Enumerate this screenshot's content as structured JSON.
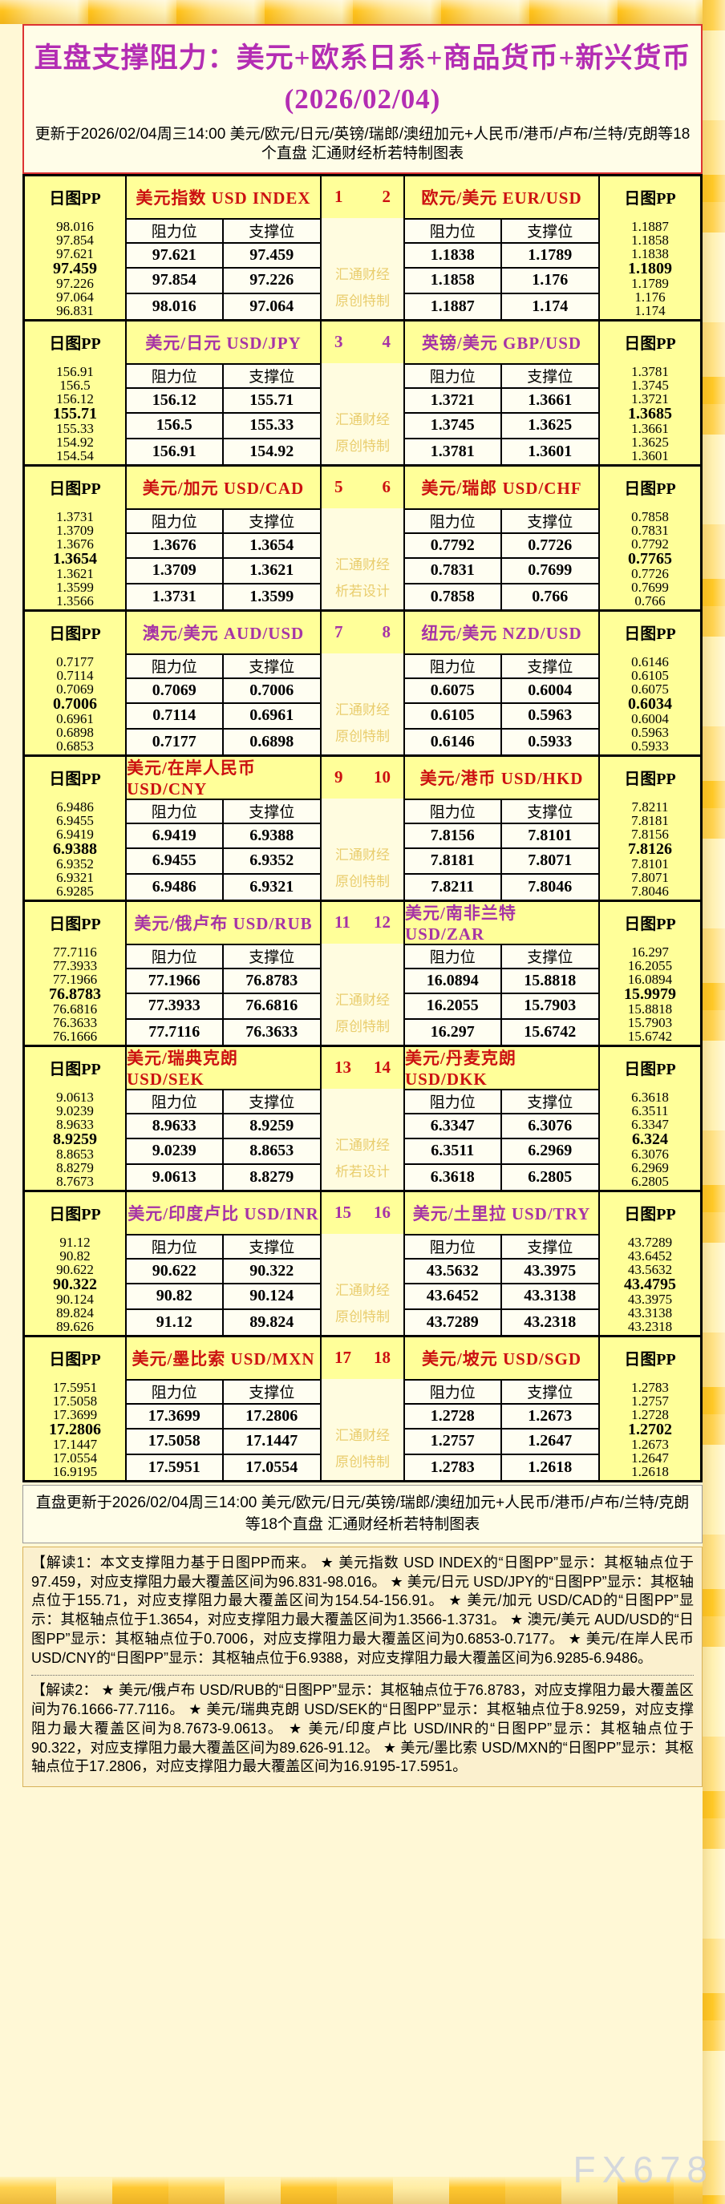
{
  "header": {
    "title": "直盘支撑阻力：美元+欧系日系+商品货币+新兴货币(2026/02/04)",
    "subtitle": "更新于2026/02/04周三14:00 美元/欧元/日元/英镑/瑞郎/澳纽加元+人民币/港币/卢布/兰特/克朗等18个直盘 汇通财经析若特制图表"
  },
  "labels": {
    "pp": "日图PP",
    "resistance": "阻力位",
    "support": "支撑位"
  },
  "colors": {
    "red_title": "#cc1111",
    "purple_title": "#a633a6",
    "main_title": "#b32db3",
    "band_yellow": "#FFFF99",
    "cell_ivory": "#FFFEF2",
    "watermark_gold": "#e9cd6d"
  },
  "sections": [
    {
      "color": "red",
      "num_left": "1",
      "num_right": "2",
      "watermark": [
        "汇通财经",
        "原创特制"
      ],
      "left": {
        "title": "美元指数 USD INDEX",
        "pp": [
          "98.016",
          "97.854",
          "97.621",
          "97.459",
          "97.226",
          "97.064",
          "96.831"
        ],
        "rows": [
          [
            "97.621",
            "97.459"
          ],
          [
            "97.854",
            "97.226"
          ],
          [
            "98.016",
            "97.064"
          ]
        ]
      },
      "right": {
        "title": "欧元/美元 EUR/USD",
        "pp": [
          "1.1887",
          "1.1858",
          "1.1838",
          "1.1809",
          "1.1789",
          "1.176",
          "1.174"
        ],
        "rows": [
          [
            "1.1838",
            "1.1789"
          ],
          [
            "1.1858",
            "1.176"
          ],
          [
            "1.1887",
            "1.174"
          ]
        ]
      }
    },
    {
      "color": "purple",
      "num_left": "3",
      "num_right": "4",
      "watermark": [
        "汇通财经",
        "原创特制"
      ],
      "left": {
        "title": "美元/日元 USD/JPY",
        "pp": [
          "156.91",
          "156.5",
          "156.12",
          "155.71",
          "155.33",
          "154.92",
          "154.54"
        ],
        "rows": [
          [
            "156.12",
            "155.71"
          ],
          [
            "156.5",
            "155.33"
          ],
          [
            "156.91",
            "154.92"
          ]
        ]
      },
      "right": {
        "title": "英镑/美元 GBP/USD",
        "pp": [
          "1.3781",
          "1.3745",
          "1.3721",
          "1.3685",
          "1.3661",
          "1.3625",
          "1.3601"
        ],
        "rows": [
          [
            "1.3721",
            "1.3661"
          ],
          [
            "1.3745",
            "1.3625"
          ],
          [
            "1.3781",
            "1.3601"
          ]
        ]
      }
    },
    {
      "color": "red",
      "num_left": "5",
      "num_right": "6",
      "watermark": [
        "汇通财经",
        "析若设计"
      ],
      "left": {
        "title": "美元/加元 USD/CAD",
        "pp": [
          "1.3731",
          "1.3709",
          "1.3676",
          "1.3654",
          "1.3621",
          "1.3599",
          "1.3566"
        ],
        "rows": [
          [
            "1.3676",
            "1.3654"
          ],
          [
            "1.3709",
            "1.3621"
          ],
          [
            "1.3731",
            "1.3599"
          ]
        ]
      },
      "right": {
        "title": "美元/瑞郎 USD/CHF",
        "pp": [
          "0.7858",
          "0.7831",
          "0.7792",
          "0.7765",
          "0.7726",
          "0.7699",
          "0.766"
        ],
        "rows": [
          [
            "0.7792",
            "0.7726"
          ],
          [
            "0.7831",
            "0.7699"
          ],
          [
            "0.7858",
            "0.766"
          ]
        ]
      }
    },
    {
      "color": "purple",
      "num_left": "7",
      "num_right": "8",
      "watermark": [
        "汇通财经",
        "原创特制"
      ],
      "left": {
        "title": "澳元/美元 AUD/USD",
        "pp": [
          "0.7177",
          "0.7114",
          "0.7069",
          "0.7006",
          "0.6961",
          "0.6898",
          "0.6853"
        ],
        "rows": [
          [
            "0.7069",
            "0.7006"
          ],
          [
            "0.7114",
            "0.6961"
          ],
          [
            "0.7177",
            "0.6898"
          ]
        ]
      },
      "right": {
        "title": "纽元/美元 NZD/USD",
        "pp": [
          "0.6146",
          "0.6105",
          "0.6075",
          "0.6034",
          "0.6004",
          "0.5963",
          "0.5933"
        ],
        "rows": [
          [
            "0.6075",
            "0.6004"
          ],
          [
            "0.6105",
            "0.5963"
          ],
          [
            "0.6146",
            "0.5933"
          ]
        ]
      }
    },
    {
      "color": "red",
      "num_left": "9",
      "num_right": "10",
      "watermark": [
        "汇通财经",
        "原创特制"
      ],
      "left": {
        "title": "美元/在岸人民币 USD/CNY",
        "pp": [
          "6.9486",
          "6.9455",
          "6.9419",
          "6.9388",
          "6.9352",
          "6.9321",
          "6.9285"
        ],
        "rows": [
          [
            "6.9419",
            "6.9388"
          ],
          [
            "6.9455",
            "6.9352"
          ],
          [
            "6.9486",
            "6.9321"
          ]
        ]
      },
      "right": {
        "title": "美元/港币 USD/HKD",
        "pp": [
          "7.8211",
          "7.8181",
          "7.8156",
          "7.8126",
          "7.8101",
          "7.8071",
          "7.8046"
        ],
        "rows": [
          [
            "7.8156",
            "7.8101"
          ],
          [
            "7.8181",
            "7.8071"
          ],
          [
            "7.8211",
            "7.8046"
          ]
        ]
      }
    },
    {
      "color": "purple",
      "num_left": "11",
      "num_right": "12",
      "watermark": [
        "汇通财经",
        "原创特制"
      ],
      "left": {
        "title": "美元/俄卢布 USD/RUB",
        "pp": [
          "77.7116",
          "77.3933",
          "77.1966",
          "76.8783",
          "76.6816",
          "76.3633",
          "76.1666"
        ],
        "rows": [
          [
            "77.1966",
            "76.8783"
          ],
          [
            "77.3933",
            "76.6816"
          ],
          [
            "77.7116",
            "76.3633"
          ]
        ]
      },
      "right": {
        "title": "美元/南非兰特 USD/ZAR",
        "pp": [
          "16.297",
          "16.2055",
          "16.0894",
          "15.9979",
          "15.8818",
          "15.7903",
          "15.6742"
        ],
        "rows": [
          [
            "16.0894",
            "15.8818"
          ],
          [
            "16.2055",
            "15.7903"
          ],
          [
            "16.297",
            "15.6742"
          ]
        ]
      }
    },
    {
      "color": "red",
      "num_left": "13",
      "num_right": "14",
      "watermark": [
        "汇通财经",
        "析若设计"
      ],
      "left": {
        "title": "美元/瑞典克朗 USD/SEK",
        "pp": [
          "9.0613",
          "9.0239",
          "8.9633",
          "8.9259",
          "8.8653",
          "8.8279",
          "8.7673"
        ],
        "rows": [
          [
            "8.9633",
            "8.9259"
          ],
          [
            "9.0239",
            "8.8653"
          ],
          [
            "9.0613",
            "8.8279"
          ]
        ]
      },
      "right": {
        "title": "美元/丹麦克朗 USD/DKK",
        "pp": [
          "6.3618",
          "6.3511",
          "6.3347",
          "6.324",
          "6.3076",
          "6.2969",
          "6.2805"
        ],
        "rows": [
          [
            "6.3347",
            "6.3076"
          ],
          [
            "6.3511",
            "6.2969"
          ],
          [
            "6.3618",
            "6.2805"
          ]
        ]
      }
    },
    {
      "color": "purple",
      "num_left": "15",
      "num_right": "16",
      "watermark": [
        "汇通财经",
        "原创特制"
      ],
      "left": {
        "title": "美元/印度卢比 USD/INR",
        "pp": [
          "91.12",
          "90.82",
          "90.622",
          "90.322",
          "90.124",
          "89.824",
          "89.626"
        ],
        "rows": [
          [
            "90.622",
            "90.322"
          ],
          [
            "90.82",
            "90.124"
          ],
          [
            "91.12",
            "89.824"
          ]
        ]
      },
      "right": {
        "title": "美元/土里拉 USD/TRY",
        "pp": [
          "43.7289",
          "43.6452",
          "43.5632",
          "43.4795",
          "43.3975",
          "43.3138",
          "43.2318"
        ],
        "rows": [
          [
            "43.5632",
            "43.3975"
          ],
          [
            "43.6452",
            "43.3138"
          ],
          [
            "43.7289",
            "43.2318"
          ]
        ]
      }
    },
    {
      "color": "red",
      "num_left": "17",
      "num_right": "18",
      "watermark": [
        "汇通财经",
        "原创特制"
      ],
      "left": {
        "title": "美元/墨比索 USD/MXN",
        "pp": [
          "17.5951",
          "17.5058",
          "17.3699",
          "17.2806",
          "17.1447",
          "17.0554",
          "16.9195"
        ],
        "rows": [
          [
            "17.3699",
            "17.2806"
          ],
          [
            "17.5058",
            "17.1447"
          ],
          [
            "17.5951",
            "17.0554"
          ]
        ]
      },
      "right": {
        "title": "美元/坡元 USD/SGD",
        "pp": [
          "1.2783",
          "1.2757",
          "1.2728",
          "1.2702",
          "1.2673",
          "1.2647",
          "1.2618"
        ],
        "rows": [
          [
            "1.2728",
            "1.2673"
          ],
          [
            "1.2757",
            "1.2647"
          ],
          [
            "1.2783",
            "1.2618"
          ]
        ]
      }
    }
  ],
  "footer": {
    "update_line": "直盘更新于2026/02/04周三14:00 美元/欧元/日元/英镑/瑞郎/澳纽加元+人民币/港币/卢布/兰特/克朗等18个直盘 汇通财经析若特制图表",
    "note1": "【解读1：本文支撑阻力基于日图PP而来。 ★ 美元指数 USD INDEX的“日图PP”显示：其枢轴点位于97.459，对应支撑阻力最大覆盖区间为96.831-98.016。 ★ 美元/日元 USD/JPY的“日图PP”显示：其枢轴点位于155.71，对应支撑阻力最大覆盖区间为154.54-156.91。 ★ 美元/加元 USD/CAD的“日图PP”显示：其枢轴点位于1.3654，对应支撑阻力最大覆盖区间为1.3566-1.3731。 ★ 澳元/美元 AUD/USD的“日图PP”显示：其枢轴点位于0.7006，对应支撑阻力最大覆盖区间为0.6853-0.7177。 ★ 美元/在岸人民币 USD/CNY的“日图PP”显示：其枢轴点位于6.9388，对应支撑阻力最大覆盖区间为6.9285-6.9486。",
    "note2": "【解读2： ★ 美元/俄卢布 USD/RUB的“日图PP”显示：其枢轴点位于76.8783，对应支撑阻力最大覆盖区间为76.1666-77.7116。 ★ 美元/瑞典克朗 USD/SEK的“日图PP”显示：其枢轴点位于8.9259，对应支撑阻力最大覆盖区间为8.7673-9.0613。 ★ 美元/印度卢比 USD/INR的“日图PP”显示：其枢轴点位于90.322，对应支撑阻力最大覆盖区间为89.626-91.12。 ★ 美元/墨比索 USD/MXN的“日图PP”显示：其枢轴点位于17.2806，对应支撑阻力最大覆盖区间为16.9195-17.5951。",
    "site_watermark": "FX678"
  }
}
